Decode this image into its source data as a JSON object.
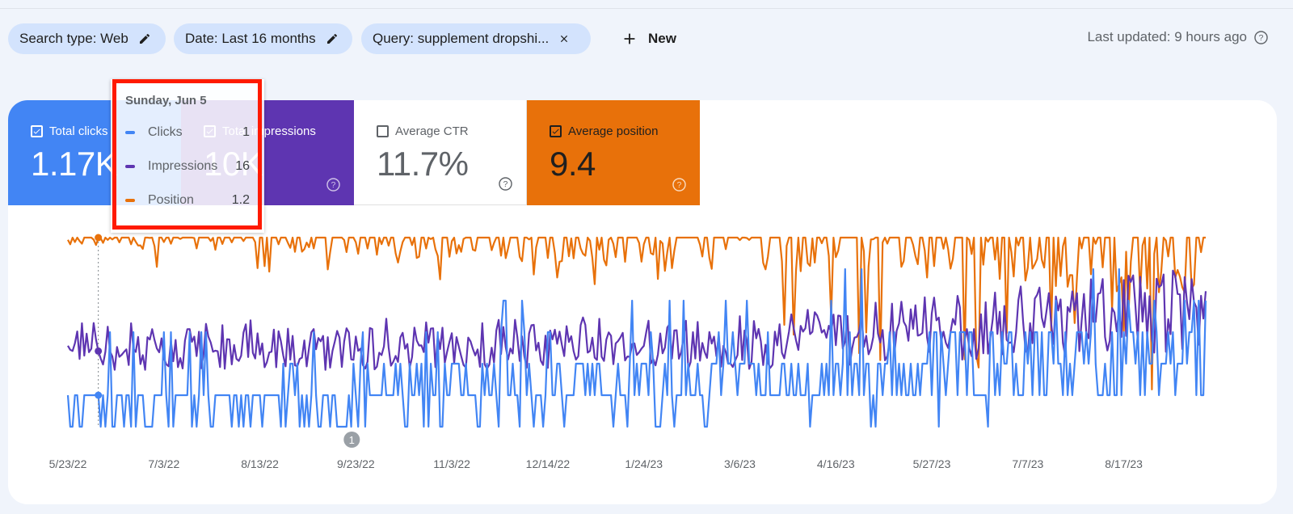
{
  "filters": {
    "search_type": "Search type: Web",
    "date": "Date: Last 16 months",
    "query": "Query: supplement dropshi...",
    "new_label": "New",
    "last_updated": "Last updated: 9 hours ago"
  },
  "metrics": {
    "clicks": {
      "label": "Total clicks",
      "value": "1.17K",
      "checked": true
    },
    "impressions": {
      "label": "Total impressions",
      "value": "10K",
      "checked": true
    },
    "ctr": {
      "label": "Average CTR",
      "value": "11.7%",
      "checked": false
    },
    "position": {
      "label": "Average position",
      "value": "9.4",
      "checked": true
    }
  },
  "colors": {
    "clicks": "#4285f4",
    "impressions": "#5e35b1",
    "position": "#e8710a",
    "accent": "#d3e3fd"
  },
  "tooltip": {
    "date": "Sunday, Jun 5",
    "rows": [
      {
        "label": "Clicks",
        "value": "1"
      },
      {
        "label": "Impressions",
        "value": "16"
      },
      {
        "label": "Position",
        "value": "1.2"
      }
    ]
  },
  "annotation_badge": "1",
  "chart_data": {
    "type": "line",
    "x_tick_labels": [
      "5/23/22",
      "7/3/22",
      "8/13/22",
      "9/23/22",
      "11/3/22",
      "12/14/22",
      "1/24/23",
      "3/6/23",
      "4/16/23",
      "5/27/23",
      "7/7/23",
      "8/17/23"
    ],
    "num_days": 487,
    "series": [
      {
        "name": "Clicks",
        "color": "#4285f4",
        "min": 0,
        "max": 6,
        "segments": [
          [
            0,
            0,
            1
          ],
          [
            120,
            0,
            1.8
          ],
          [
            300,
            0.3,
            2.5
          ],
          [
            487,
            0.5,
            4
          ]
        ]
      },
      {
        "name": "Impressions",
        "color": "#5e35b1",
        "min": 0,
        "max": 40,
        "segments": [
          [
            0,
            12,
            22
          ],
          [
            300,
            12,
            24
          ],
          [
            487,
            16,
            34
          ]
        ]
      },
      {
        "name": "Position",
        "color": "#e8710a",
        "inverted": true,
        "min": 1,
        "max": 60,
        "segments": [
          [
            0,
            1,
            3
          ],
          [
            300,
            1,
            12
          ],
          [
            487,
            1,
            20
          ]
        ]
      }
    ],
    "highlight": {
      "day": 13,
      "label": "Sunday, Jun 5",
      "clicks": 1,
      "impressions": 16,
      "position": 1.2
    }
  }
}
